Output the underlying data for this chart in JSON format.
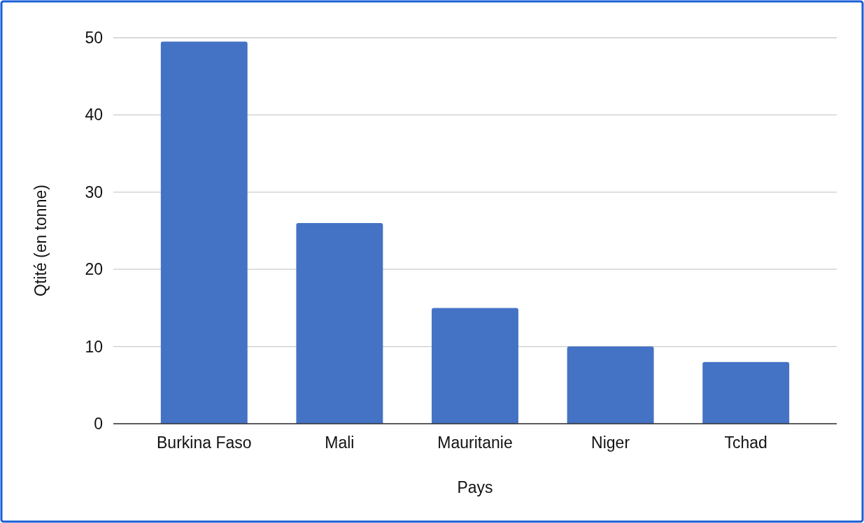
{
  "chart_data": {
    "type": "bar",
    "xlabel": "Pays",
    "ylabel": "Qtité (en tonne)",
    "categories": [
      "Burkina Faso",
      "Mali",
      "Mauritanie",
      "Niger",
      "Tchad"
    ],
    "values": [
      49.5,
      26,
      15,
      10,
      8
    ],
    "color": "#4472c4",
    "ylim": [
      0,
      50
    ],
    "yticks": [
      0,
      10,
      20,
      30,
      40,
      50
    ],
    "grid": "y"
  }
}
